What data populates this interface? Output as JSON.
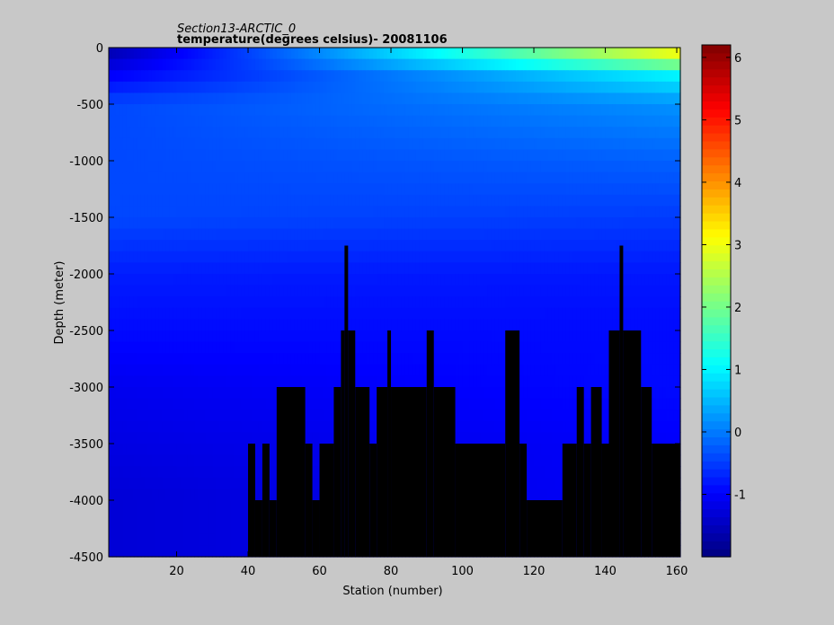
{
  "chart_data": {
    "type": "heatmap",
    "title": "Section13-ARCTIC_0",
    "subtitle": "temperature(degrees  celsius)- 20081106",
    "xlabel": "Station (number)",
    "ylabel": "Depth (meter)",
    "xlim": [
      1,
      161
    ],
    "ylim": [
      -4500,
      0
    ],
    "x_ticks": [
      20,
      40,
      60,
      80,
      100,
      120,
      140,
      160
    ],
    "y_ticks": [
      0,
      -500,
      -1000,
      -1500,
      -2000,
      -2500,
      -3000,
      -3500,
      -4000,
      -4500
    ],
    "colorbar": {
      "range": [
        -2,
        6.2
      ],
      "ticks": [
        -1,
        0,
        1,
        2,
        3,
        4,
        5,
        6
      ],
      "colormap": "jet"
    },
    "bottom_depth_by_station": [
      {
        "from": 1,
        "to": 40,
        "depth": -4500
      },
      {
        "from": 40,
        "to": 42,
        "depth": -3500
      },
      {
        "from": 42,
        "to": 44,
        "depth": -4000
      },
      {
        "from": 44,
        "to": 46,
        "depth": -3500
      },
      {
        "from": 46,
        "to": 48,
        "depth": -4000
      },
      {
        "from": 48,
        "to": 56,
        "depth": -3000
      },
      {
        "from": 56,
        "to": 58,
        "depth": -3500
      },
      {
        "from": 58,
        "to": 60,
        "depth": -4000
      },
      {
        "from": 60,
        "to": 64,
        "depth": -3500
      },
      {
        "from": 64,
        "to": 66,
        "depth": -3000
      },
      {
        "from": 66,
        "to": 67,
        "depth": -2500
      },
      {
        "from": 67,
        "to": 68,
        "depth": -1750
      },
      {
        "from": 68,
        "to": 70,
        "depth": -2500
      },
      {
        "from": 70,
        "to": 74,
        "depth": -3000
      },
      {
        "from": 74,
        "to": 76,
        "depth": -3500
      },
      {
        "from": 76,
        "to": 79,
        "depth": -3000
      },
      {
        "from": 79,
        "to": 80,
        "depth": -2500
      },
      {
        "from": 80,
        "to": 90,
        "depth": -3000
      },
      {
        "from": 90,
        "to": 92,
        "depth": -2500
      },
      {
        "from": 92,
        "to": 98,
        "depth": -3000
      },
      {
        "from": 98,
        "to": 112,
        "depth": -3500
      },
      {
        "from": 112,
        "to": 116,
        "depth": -2500
      },
      {
        "from": 116,
        "to": 118,
        "depth": -3500
      },
      {
        "from": 118,
        "to": 128,
        "depth": -4000
      },
      {
        "from": 128,
        "to": 132,
        "depth": -3500
      },
      {
        "from": 132,
        "to": 134,
        "depth": -3000
      },
      {
        "from": 134,
        "to": 136,
        "depth": -3500
      },
      {
        "from": 136,
        "to": 139,
        "depth": -3000
      },
      {
        "from": 139,
        "to": 141,
        "depth": -3500
      },
      {
        "from": 141,
        "to": 144,
        "depth": -2500
      },
      {
        "from": 144,
        "to": 145,
        "depth": -1750
      },
      {
        "from": 145,
        "to": 150,
        "depth": -2500
      },
      {
        "from": 150,
        "to": 153,
        "depth": -3000
      },
      {
        "from": 153,
        "to": 161,
        "depth": -3500
      }
    ],
    "temperature_profile": [
      {
        "depth": 0,
        "west": -1.7,
        "east": 3.5
      },
      {
        "depth": -250,
        "west": -1.0,
        "east": 1.0
      },
      {
        "depth": -500,
        "west": -0.4,
        "east": 0.2
      },
      {
        "depth": -1000,
        "west": -0.4,
        "east": -0.2
      },
      {
        "depth": -1500,
        "west": -0.4,
        "east": -0.5
      },
      {
        "depth": -2000,
        "west": -0.75,
        "east": -0.8
      },
      {
        "depth": -2500,
        "west": -0.9,
        "east": -0.9
      },
      {
        "depth": -3000,
        "west": -1.1,
        "east": -0.9
      },
      {
        "depth": -3500,
        "west": -1.2,
        "east": -1.0
      },
      {
        "depth": -4000,
        "west": -1.3,
        "east": -1.0
      },
      {
        "depth": -4500,
        "west": -1.3,
        "east": -1.0
      }
    ]
  }
}
